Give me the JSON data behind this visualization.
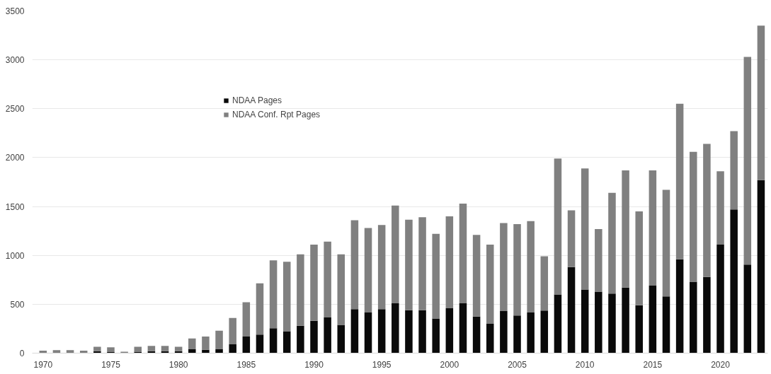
{
  "chart_data": {
    "type": "bar",
    "stacked": true,
    "x": [
      1970,
      1971,
      1972,
      1973,
      1974,
      1975,
      1976,
      1977,
      1978,
      1979,
      1980,
      1981,
      1982,
      1983,
      1984,
      1985,
      1986,
      1987,
      1988,
      1989,
      1990,
      1991,
      1992,
      1993,
      1994,
      1995,
      1996,
      1997,
      1998,
      1999,
      2000,
      2001,
      2002,
      2003,
      2004,
      2005,
      2006,
      2007,
      2008,
      2009,
      2010,
      2011,
      2012,
      2013,
      2014,
      2015,
      2016,
      2017,
      2018,
      2019,
      2020,
      2021,
      2022,
      2023
    ],
    "series": [
      {
        "name": "NDAA Pages",
        "color": "#0a0a0a",
        "values": [
          null,
          null,
          null,
          null,
          20,
          10,
          null,
          15,
          20,
          20,
          20,
          40,
          35,
          40,
          90,
          170,
          190,
          255,
          225,
          280,
          330,
          365,
          290,
          450,
          415,
          450,
          510,
          440,
          440,
          355,
          460,
          510,
          375,
          300,
          430,
          385,
          415,
          435,
          600,
          880,
          650,
          630,
          610,
          670,
          490,
          690,
          580,
          960,
          730,
          780,
          1110,
          1470,
          905,
          1770
        ]
      },
      {
        "name": "NDAA Conf. Rpt Pages",
        "color": "#808080",
        "values": [
          25,
          30,
          30,
          25,
          45,
          50,
          15,
          50,
          55,
          55,
          45,
          110,
          135,
          190,
          270,
          350,
          525,
          695,
          710,
          730,
          780,
          775,
          720,
          910,
          865,
          860,
          1000,
          925,
          950,
          865,
          940,
          1020,
          835,
          810,
          900,
          935,
          935,
          555,
          1390,
          580,
          1240,
          640,
          1030,
          1200,
          960,
          1180,
          1090,
          1590,
          1330,
          1360,
          750,
          800,
          2125,
          1580
        ]
      }
    ],
    "xlim": [
      1969.2,
      2023.5
    ],
    "xticks": [
      1970,
      1975,
      1980,
      1985,
      1990,
      1995,
      2000,
      2005,
      2010,
      2015,
      2020
    ],
    "ylim": [
      0,
      3500
    ],
    "yticks": [
      0,
      500,
      1000,
      1500,
      2000,
      2500,
      3000,
      3500
    ],
    "grid": "y",
    "legend": "top left"
  }
}
